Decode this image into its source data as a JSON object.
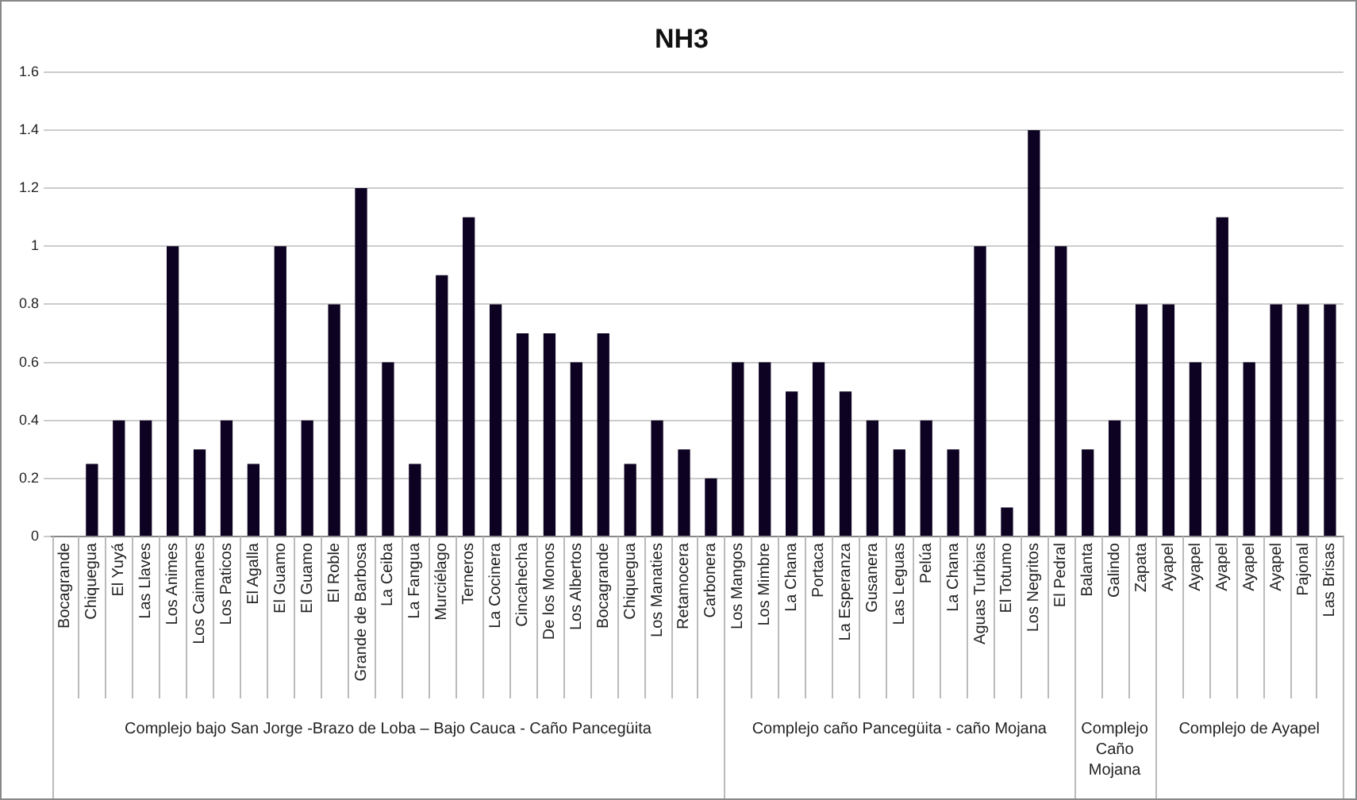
{
  "chart_data": {
    "type": "bar",
    "title": "NH3",
    "categories": [
      "Bocagrande",
      "Chiquegua",
      "El Yuyá",
      "Las Llaves",
      "Los Animes",
      "Los Caimanes",
      "Los Paticos",
      "El Agalla",
      "El Guamo",
      "El Guamo",
      "El Roble",
      "Grande de Barbosa",
      "La Ceiba",
      "La Fangua",
      "Murciélago",
      "Terneros",
      "La Cocinera",
      "Cincahecha",
      "De los Monos",
      "Los Albertos",
      "Bocagrande",
      "Chiquegua",
      "Los Manaties",
      "Retamocera",
      "Carbonera",
      "Los Mangos",
      "Los Mimbre",
      "La Chana",
      "Portaca",
      "La Esperanza",
      "Gusanera",
      "Las Leguas",
      "Pelúa",
      "La Chana",
      "Aguas Turbias",
      "El Totumo",
      "Los Negritos",
      "El Pedral",
      "Balanta",
      "Galindo",
      "Zapata",
      "Ayapel",
      "Ayapel",
      "Ayapel",
      "Ayapel",
      "Ayapel",
      "Pajonal",
      "Las Brisas"
    ],
    "values": [
      null,
      0.25,
      0.4,
      0.4,
      1,
      0.3,
      0.4,
      0.25,
      1,
      0.4,
      0.8,
      1.2,
      0.6,
      0.25,
      0.9,
      1.1,
      0.8,
      0.7,
      0.7,
      0.6,
      0.7,
      0.25,
      0.4,
      0.3,
      0.2,
      0.6,
      0.6,
      0.5,
      0.6,
      0.5,
      0.4,
      0.3,
      0.4,
      0.3,
      1,
      0.1,
      1.4,
      1,
      0.3,
      0.4,
      0.8,
      0.8,
      0.6,
      1.1,
      0.6,
      0.8,
      0.8,
      0.8
    ],
    "color": "#0d0221",
    "ylim": [
      0,
      1.6
    ],
    "yticks": [
      0,
      0.2,
      0.4,
      0.6,
      0.8,
      1,
      1.2,
      1.4,
      1.6
    ],
    "grid": "y",
    "legend": false,
    "annotations": [
      "Complejo bajo San Jorge -Brazo de Loba – Bajo Cauca - Caño Pancegüita",
      "Complejo caño Pancegüita - caño Mojana",
      "Complejo Caño Mojana",
      "Complejo de Ayapel"
    ]
  }
}
